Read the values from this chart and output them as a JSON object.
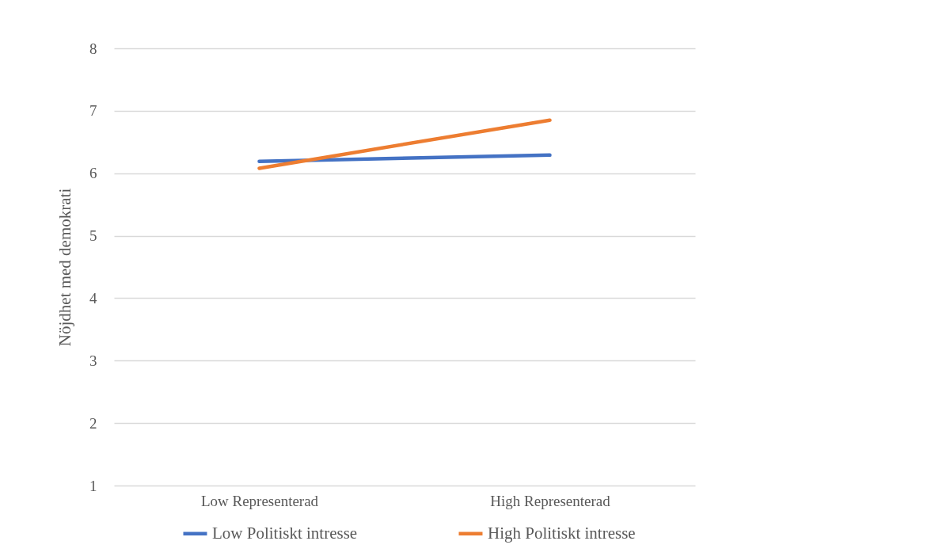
{
  "chart_data": {
    "type": "line",
    "ylabel": "Nöjdhet med demokrati",
    "categories": [
      "Low Representerad",
      "High Representerad"
    ],
    "series": [
      {
        "name": "Low Politiskt intresse",
        "color": "#4472c4",
        "values": [
          6.19,
          6.29
        ]
      },
      {
        "name": "High Politiskt intresse",
        "color": "#ed7d31",
        "values": [
          6.08,
          6.85
        ]
      }
    ],
    "ylim": [
      1,
      8
    ],
    "yticks": [
      1,
      2,
      3,
      4,
      5,
      6,
      7,
      8
    ],
    "grid": "y",
    "legend": "bottom",
    "marker": "none",
    "line_style": "solid"
  }
}
